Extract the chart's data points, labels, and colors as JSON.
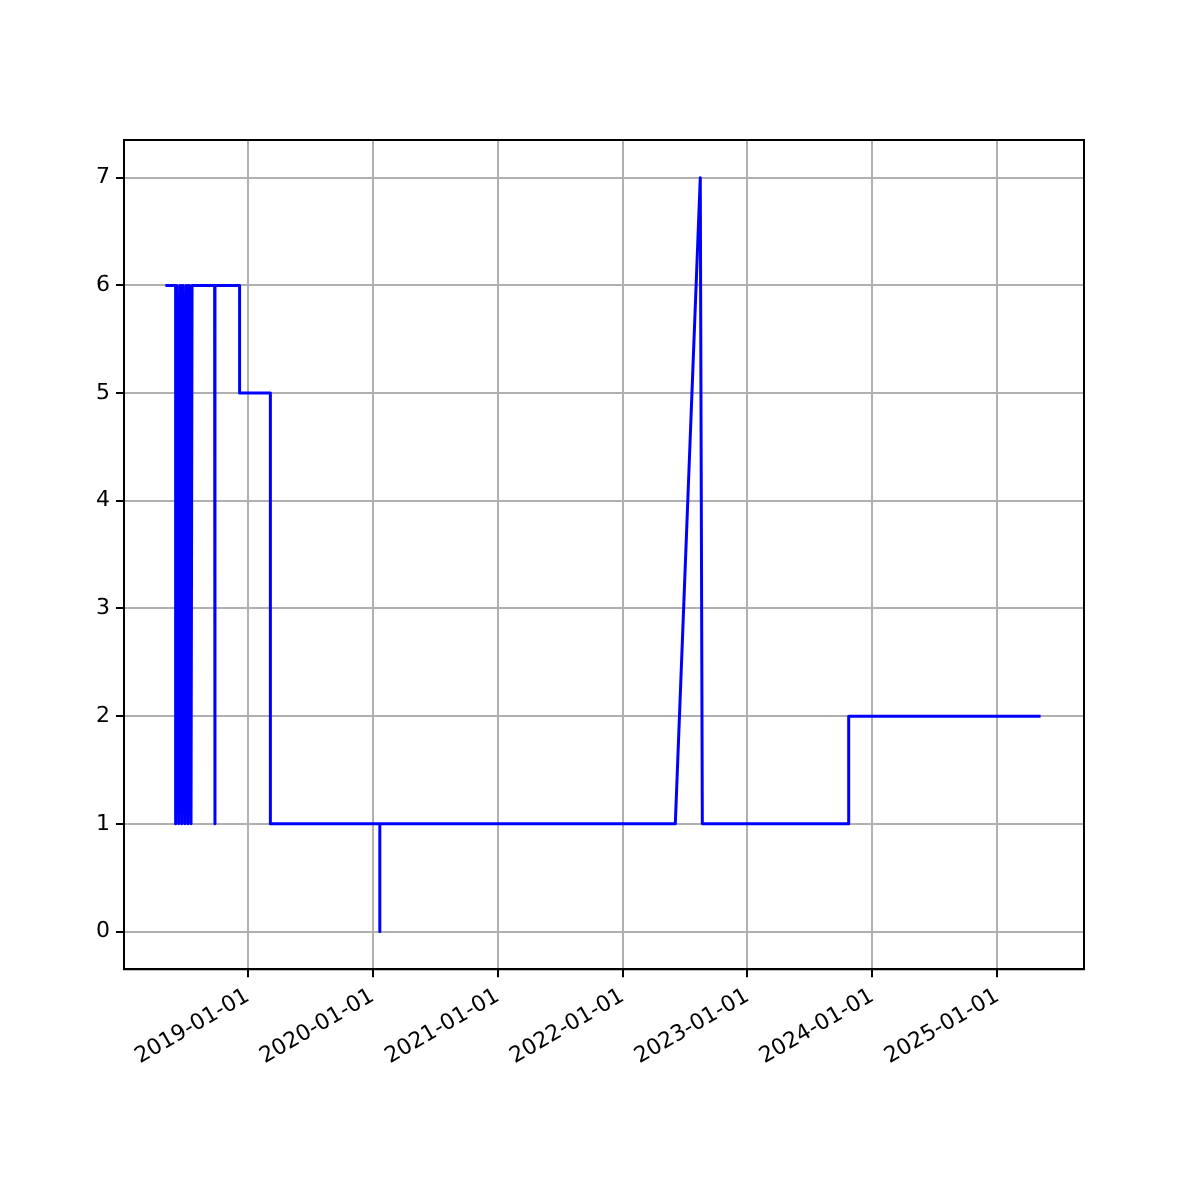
{
  "chart_data": {
    "type": "line",
    "x": [
      "2018-05-05",
      "2018-06-04",
      "2018-06-04",
      "2018-06-08",
      "2018-06-13",
      "2018-06-17",
      "2018-06-22",
      "2018-06-26",
      "2018-07-01",
      "2018-07-05",
      "2018-07-10",
      "2018-07-14",
      "2018-07-19",
      "2018-07-22",
      "2018-09-26",
      "2018-09-26",
      "2018-09-28",
      "2018-12-08",
      "2018-12-08",
      "2019-03-08",
      "2019-03-08",
      "2020-01-22",
      "2020-01-22",
      "2020-01-22",
      "2022-06-04",
      "2022-08-16",
      "2022-08-22",
      "2023-10-24",
      "2023-10-24",
      "2025-05-07"
    ],
    "series": [
      {
        "color": "#0000ff",
        "values": [
          6,
          6,
          1,
          6,
          1,
          6,
          1,
          6,
          1,
          6,
          1,
          6,
          1,
          6,
          6,
          1,
          6,
          6,
          5,
          5,
          1,
          1,
          0,
          1,
          1,
          7,
          1,
          1,
          2,
          2
        ]
      }
    ],
    "xlim": [
      "2018-01-04",
      "2025-09-11"
    ],
    "xticks": [
      "2019-01-01",
      "2020-01-01",
      "2021-01-01",
      "2022-01-01",
      "2023-01-01",
      "2024-01-01",
      "2025-01-01"
    ],
    "ylim": [
      -0.35,
      7.35
    ],
    "yticks": [
      0,
      1,
      2,
      3,
      4,
      5,
      6,
      7
    ],
    "grid": true,
    "legend": false,
    "marker": "none",
    "line_style": "solid"
  }
}
